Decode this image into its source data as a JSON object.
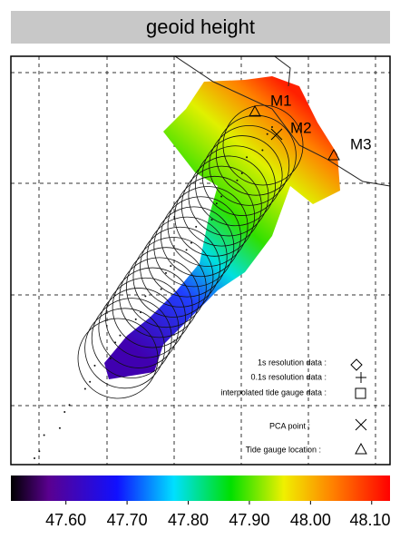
{
  "title": "geoid height",
  "markers": [
    "M1",
    "M2",
    "M3"
  ],
  "legend": [
    "1s resolution data :",
    "0.1s resolution data :",
    "interpolated tide gauge data :",
    "PCA point :",
    "Tide gauge location :"
  ],
  "colorbar": {
    "lim": [
      47.51,
      48.13
    ],
    "ticks": [
      {
        "value": 47.6,
        "label": "47.60"
      },
      {
        "value": 47.7,
        "label": "47.70"
      },
      {
        "value": 47.8,
        "label": "47.80"
      },
      {
        "value": 47.9,
        "label": "47.90"
      },
      {
        "value": 48.0,
        "label": "48.00"
      },
      {
        "value": 48.1,
        "label": "48.10"
      }
    ]
  }
}
